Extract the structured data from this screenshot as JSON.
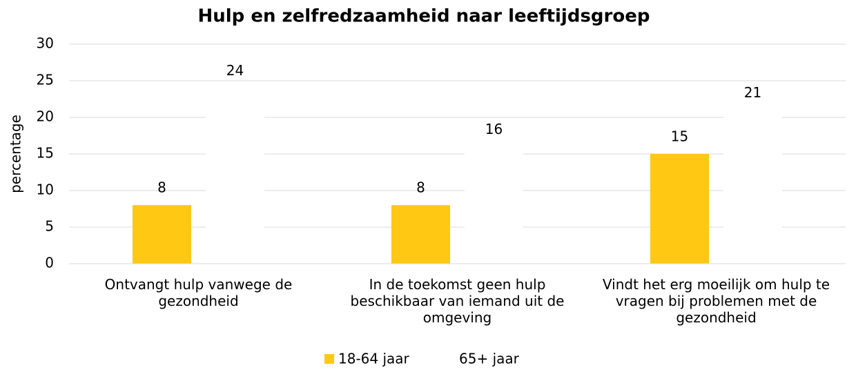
{
  "chart_data": {
    "type": "bar",
    "title": "Hulp en zelfredzaamheid naar leeftijdsgroep",
    "ylabel": "percentage",
    "categories": [
      "Ontvangt hulp vanwege de gezondheid",
      "In de toekomst geen hulp beschikbaar van iemand uit de omgeving",
      "Vindt het erg moeilijk om hulp te vragen bij problemen met de gezondheid"
    ],
    "series": [
      {
        "name": "18-64 jaar",
        "color": "#ffc813",
        "values": [
          8,
          8,
          15
        ]
      },
      {
        "name": "65+ jaar",
        "color": "#ffffff",
        "values": [
          24,
          16,
          21
        ]
      }
    ],
    "ylim": [
      0,
      30
    ],
    "yticks": [
      0,
      5,
      10,
      15,
      20,
      25,
      30
    ],
    "grid": true,
    "legend": "bottom"
  }
}
